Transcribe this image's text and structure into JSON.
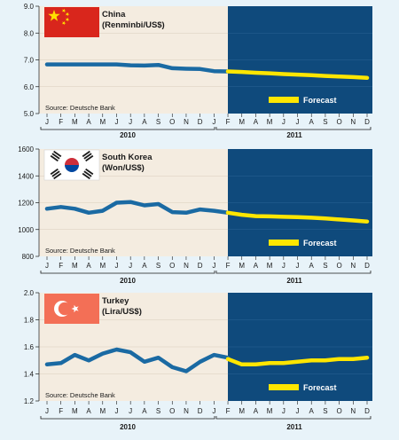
{
  "chart_data": [
    {
      "type": "line",
      "title": "China",
      "subtitle": "(Renminbi/US$)",
      "source": "Source: Deutsche Bank",
      "legend": "Forecast",
      "x": [
        "J",
        "F",
        "M",
        "A",
        "M",
        "J",
        "J",
        "A",
        "S",
        "O",
        "N",
        "D",
        "J",
        "F",
        "M",
        "A",
        "M",
        "J",
        "J",
        "A",
        "S",
        "O",
        "N",
        "D"
      ],
      "years": [
        "2010",
        "2011"
      ],
      "ylim": [
        5.0,
        9.0
      ],
      "yticks": [
        "9.0",
        "8.0",
        "7.0",
        "6.0",
        "5.0"
      ],
      "series": [
        {
          "values": [
            6.83,
            6.83,
            6.83,
            6.83,
            6.83,
            6.83,
            6.8,
            6.79,
            6.81,
            6.69,
            6.67,
            6.66,
            6.58,
            6.57,
            null,
            null,
            null,
            null,
            null,
            null,
            null,
            null,
            null,
            null
          ]
        },
        {
          "values": [
            null,
            null,
            null,
            null,
            null,
            null,
            null,
            null,
            null,
            null,
            null,
            null,
            null,
            6.57,
            6.55,
            6.52,
            6.5,
            6.47,
            6.45,
            6.43,
            6.4,
            6.38,
            6.36,
            6.33
          ]
        }
      ]
    },
    {
      "type": "line",
      "title": "South Korea",
      "subtitle": "(Won/US$)",
      "source": "Source: Deutsche Bank",
      "legend": "Forecast",
      "x": [
        "J",
        "F",
        "M",
        "A",
        "M",
        "J",
        "J",
        "A",
        "S",
        "O",
        "N",
        "D",
        "J",
        "F",
        "M",
        "A",
        "M",
        "J",
        "J",
        "A",
        "S",
        "O",
        "N",
        "D"
      ],
      "years": [
        "2010",
        "2011"
      ],
      "ylim": [
        800,
        1600
      ],
      "yticks": [
        "1600",
        "1400",
        "1200",
        "1000",
        "800"
      ],
      "series": [
        {
          "values": [
            1155,
            1168,
            1155,
            1125,
            1140,
            1200,
            1205,
            1180,
            1190,
            1130,
            1125,
            1150,
            1140,
            1125,
            null,
            null,
            null,
            null,
            null,
            null,
            null,
            null,
            null,
            null
          ]
        },
        {
          "values": [
            null,
            null,
            null,
            null,
            null,
            null,
            null,
            null,
            null,
            null,
            null,
            null,
            null,
            1125,
            1110,
            1100,
            1098,
            1095,
            1092,
            1088,
            1082,
            1075,
            1068,
            1060
          ]
        }
      ]
    },
    {
      "type": "line",
      "title": "Turkey",
      "subtitle": "(Lira/US$)",
      "source": "Source: Deutsche Bank",
      "legend": "Forecast",
      "x": [
        "J",
        "F",
        "M",
        "A",
        "M",
        "J",
        "J",
        "A",
        "S",
        "O",
        "N",
        "D",
        "J",
        "F",
        "M",
        "A",
        "M",
        "J",
        "J",
        "A",
        "S",
        "O",
        "N",
        "D"
      ],
      "years": [
        "2010",
        "2011"
      ],
      "ylim": [
        1.2,
        2.0
      ],
      "yticks": [
        "2.0",
        "1.8",
        "1.6",
        "1.4",
        "1.2"
      ],
      "series": [
        {
          "values": [
            1.47,
            1.48,
            1.54,
            1.5,
            1.55,
            1.58,
            1.56,
            1.49,
            1.52,
            1.45,
            1.42,
            1.49,
            1.54,
            1.52,
            null,
            null,
            null,
            null,
            null,
            null,
            null,
            null,
            null,
            null
          ]
        },
        {
          "values": [
            null,
            null,
            null,
            null,
            null,
            null,
            null,
            null,
            null,
            null,
            null,
            null,
            null,
            1.51,
            1.47,
            1.47,
            1.48,
            1.48,
            1.49,
            1.5,
            1.5,
            1.51,
            1.51,
            1.52
          ]
        }
      ]
    }
  ]
}
